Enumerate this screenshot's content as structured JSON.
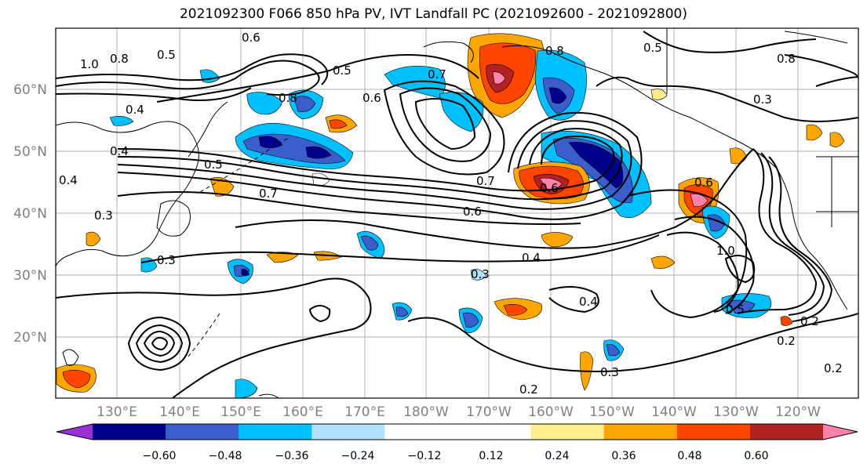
{
  "title": "2021092300 F066 850 hPa PV, IVT Landfall PC (2021092600 - 2021092800)",
  "lat_labels": [
    "60°N",
    "50°N",
    "40°N",
    "30°N",
    "20°N"
  ],
  "lon_labels": [
    "130°E",
    "140°E",
    "150°E",
    "160°E",
    "170°E",
    "180°W",
    "170°W",
    "160°W",
    "150°W",
    "140°W",
    "130°W",
    "120°W"
  ],
  "colorbar": {
    "colors": [
      "#9b30d9",
      "#00008b",
      "#3a5fcd",
      "#00bfff",
      "#b0e2ff",
      "#ffffff",
      "#ffffff",
      "#ffec8b",
      "#ffa500",
      "#ff4500",
      "#b22222",
      "#ff82ab"
    ],
    "ticks": [
      "−0.60",
      "−0.48",
      "−0.36",
      "−0.24",
      "−0.12",
      "0.12",
      "0.24",
      "0.36",
      "0.48",
      "0.60"
    ]
  },
  "contour_labels": [
    "0.6",
    "0.8",
    "0.5",
    "0.7",
    "1.0",
    "0.4",
    "0.8",
    "0.6",
    "0.5",
    "0.7",
    "0.3",
    "0.4",
    "0.5",
    "0.4",
    "0.7",
    "0.6",
    "0.6",
    "0.8",
    "0.3",
    "0.2",
    "0.4",
    "0.3",
    "1.0",
    "0.5",
    "0.4",
    "0.2",
    "0.2",
    "0.3",
    "0.2",
    "0.3",
    "0.8",
    "0.6",
    "0.5"
  ]
}
